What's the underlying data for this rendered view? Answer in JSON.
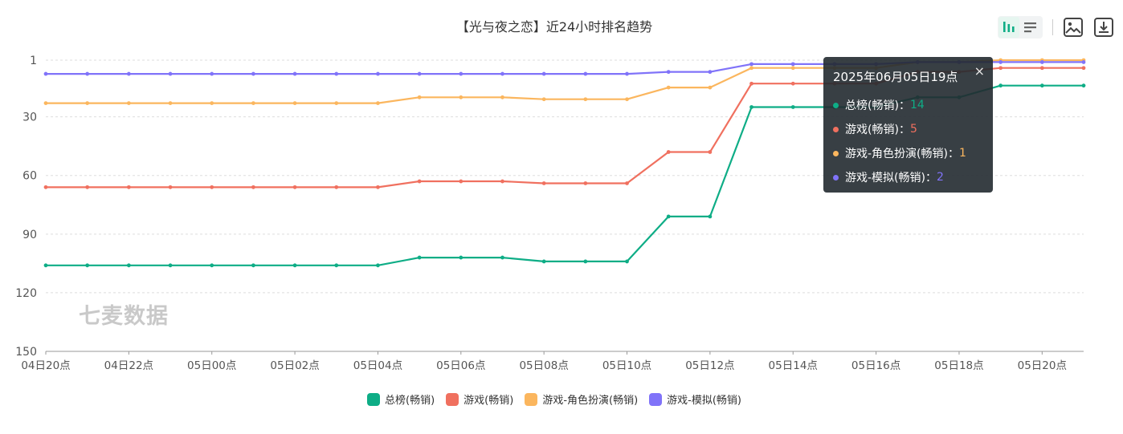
{
  "chart_data": {
    "type": "line",
    "title": "【光与夜之恋】近24小时排名趋势",
    "x": [
      "04日20点",
      "04日21点",
      "04日22点",
      "04日23点",
      "05日00点",
      "05日01点",
      "05日02点",
      "05日03点",
      "05日04点",
      "05日05点",
      "05日06点",
      "05日07点",
      "05日08点",
      "05日09点",
      "05日10点",
      "05日11点",
      "05日12点",
      "05日13点",
      "05日14点",
      "05日15点",
      "05日16点",
      "05日17点",
      "05日18点",
      "05日19点",
      "05日20点",
      "05日21点"
    ],
    "x_tick_labels": [
      "04日20点",
      "04日22点",
      "05日00点",
      "05日02点",
      "05日04点",
      "05日06点",
      "05日08点",
      "05日10点",
      "05日12点",
      "05日14点",
      "05日16点",
      "05日18点",
      "05日20点"
    ],
    "y_ticks": [
      1,
      30,
      60,
      90,
      120,
      150
    ],
    "ylim": [
      1,
      150
    ],
    "y_inverted": true,
    "grid": true,
    "legend_position": "bottom",
    "series": [
      {
        "name": "总榜(畅销)",
        "color": "#0ead86",
        "values": [
          106,
          106,
          106,
          106,
          106,
          106,
          106,
          106,
          106,
          102,
          102,
          102,
          104,
          104,
          104,
          81,
          81,
          25,
          25,
          25,
          25,
          20,
          20,
          14,
          14,
          14
        ]
      },
      {
        "name": "游戏(畅销)",
        "color": "#f0705f",
        "values": [
          66,
          66,
          66,
          66,
          66,
          66,
          66,
          66,
          66,
          63,
          63,
          63,
          64,
          64,
          64,
          48,
          48,
          13,
          13,
          13,
          13,
          7,
          7,
          5,
          5,
          5
        ]
      },
      {
        "name": "游戏-角色扮演(畅销)",
        "color": "#fbb65e",
        "values": [
          23,
          23,
          23,
          23,
          23,
          23,
          23,
          23,
          23,
          20,
          20,
          20,
          21,
          21,
          21,
          15,
          15,
          5,
          5,
          5,
          5,
          2,
          2,
          1,
          1,
          1
        ]
      },
      {
        "name": "游戏-模拟(畅销)",
        "color": "#8073f9",
        "values": [
          8,
          8,
          8,
          8,
          8,
          8,
          8,
          8,
          8,
          8,
          8,
          8,
          8,
          8,
          8,
          7,
          7,
          3,
          3,
          3,
          3,
          2,
          2,
          2,
          2,
          2
        ]
      }
    ]
  },
  "watermark": "七麦数据",
  "tooltip": {
    "title": "2025年06月05日19点",
    "close": "×",
    "sep": "：",
    "rows": [
      {
        "name": "总榜(畅销)",
        "value": "14"
      },
      {
        "name": "游戏(畅销)",
        "value": "5"
      },
      {
        "name": "游戏-角色扮演(畅销)",
        "value": "1"
      },
      {
        "name": "游戏-模拟(畅销)",
        "value": "2"
      }
    ]
  },
  "icons": {
    "bar_view": "bar-chart-view-icon",
    "list_view": "list-view-icon",
    "save_image": "image-icon",
    "download": "download-icon"
  },
  "colors": {
    "grid": "#dddddd",
    "axis": "#999999",
    "tick_text": "#555555"
  }
}
